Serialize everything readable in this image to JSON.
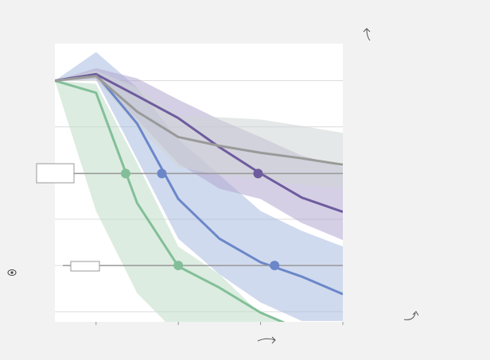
{
  "chart_data": {
    "type": "line-band",
    "x": [
      0,
      0.5,
      1,
      1.5,
      2,
      2.5,
      3,
      3.5
    ],
    "xlim": [
      0,
      3.5
    ],
    "xticks": [
      0.5,
      1.5,
      2.5,
      3.5
    ],
    "ylim": [
      -0.22,
      5.8
    ],
    "yticks": [
      0,
      1,
      2,
      3,
      4,
      5
    ],
    "grid": true,
    "series": [
      {
        "color": "#82bf98",
        "band_color": "#bfdcc6",
        "values": [
          5.0,
          4.74,
          2.35,
          0.98,
          0.52,
          -0.02,
          -0.4,
          -0.8
        ],
        "upper": [
          5.0,
          4.93,
          3.21,
          1.41,
          0.81,
          -0.05,
          -0.4,
          -0.8
        ],
        "lower": [
          5.0,
          2.18,
          0.4,
          -0.5,
          -1,
          -1,
          -1,
          -1
        ]
      },
      {
        "color": "#6b87c9",
        "band_color": "#a9bbe0",
        "values": [
          5.0,
          5.14,
          4.07,
          2.44,
          1.58,
          1.07,
          0.76,
          0.38
        ],
        "upper": [
          5.0,
          5.62,
          4.85,
          3.73,
          2.96,
          2.18,
          1.75,
          1.41
        ],
        "lower": [
          5.0,
          5.02,
          3.3,
          1.58,
          0.81,
          0.2,
          -0.2,
          -0.2
        ]
      },
      {
        "color": "#6e5b9e",
        "band_color": "#b3a8cf",
        "values": [
          5.0,
          5.14,
          4.67,
          4.19,
          3.56,
          2.99,
          2.47,
          2.16
        ],
        "upper": [
          5.0,
          5.27,
          5.05,
          4.59,
          4.16,
          3.78,
          3.38,
          3.13
        ],
        "lower": [
          5.0,
          5.02,
          4.16,
          3.21,
          2.66,
          2.44,
          1.92,
          1.55
        ]
      },
      {
        "color": "#9a9a9a",
        "band_color": "#cfd6d6",
        "values": [
          5.0,
          5.1,
          4.33,
          3.78,
          3.59,
          3.44,
          3.32,
          3.18
        ],
        "upper": [
          5.0,
          5.22,
          4.85,
          4.24,
          4.21,
          4.16,
          4.02,
          3.87
        ],
        "lower": [
          5.0,
          5.02,
          4.0,
          3.13,
          2.96,
          2.87,
          2.75,
          2.68
        ]
      }
    ],
    "reference_lines": [
      {
        "y": 2.99,
        "points": [
          {
            "x": 0.86,
            "color": "#82bf98"
          },
          {
            "x": 1.3,
            "color": "#6b87c9"
          },
          {
            "x": 2.47,
            "color": "#6e5b9e"
          }
        ]
      },
      {
        "y": 1.0,
        "points": [
          {
            "x": 1.5,
            "color": "#82bf98"
          },
          {
            "x": 2.67,
            "color": "#6b87c9"
          }
        ]
      }
    ]
  }
}
